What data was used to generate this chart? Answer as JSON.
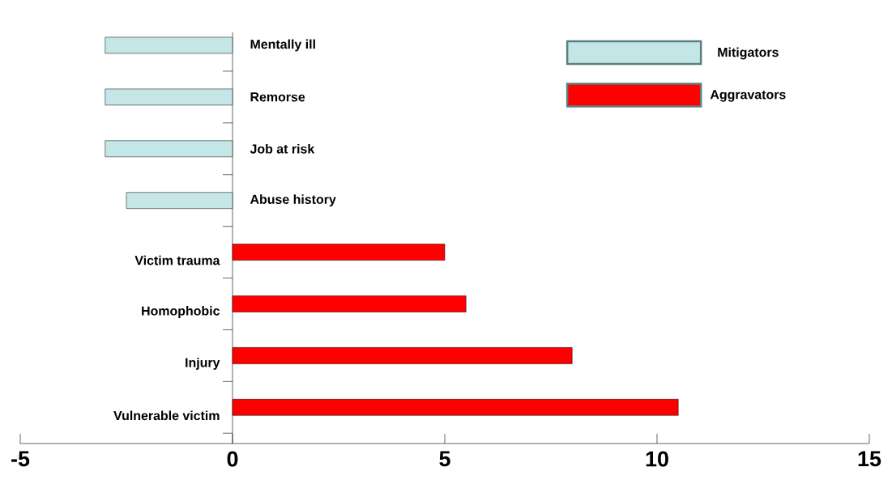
{
  "chart_data": {
    "type": "bar",
    "orientation": "horizontal",
    "categories": [
      "Mentally ill",
      "Remorse",
      "Job at risk",
      "Abuse history",
      "Victim trauma",
      "Homophobic",
      "Injury",
      "Vulnerable victim"
    ],
    "series": [
      {
        "name": "Mitigators",
        "color": "#c4e6e6",
        "values": [
          -3,
          -3,
          -3,
          -2.5,
          null,
          null,
          null,
          null
        ]
      },
      {
        "name": "Aggravators",
        "color": "#ff0000",
        "values": [
          null,
          null,
          null,
          null,
          5,
          5.5,
          8,
          10.5
        ]
      }
    ],
    "xlim": [
      -5,
      15
    ],
    "xticks": [
      -5,
      0,
      5,
      10,
      15
    ],
    "legend": "top right"
  }
}
